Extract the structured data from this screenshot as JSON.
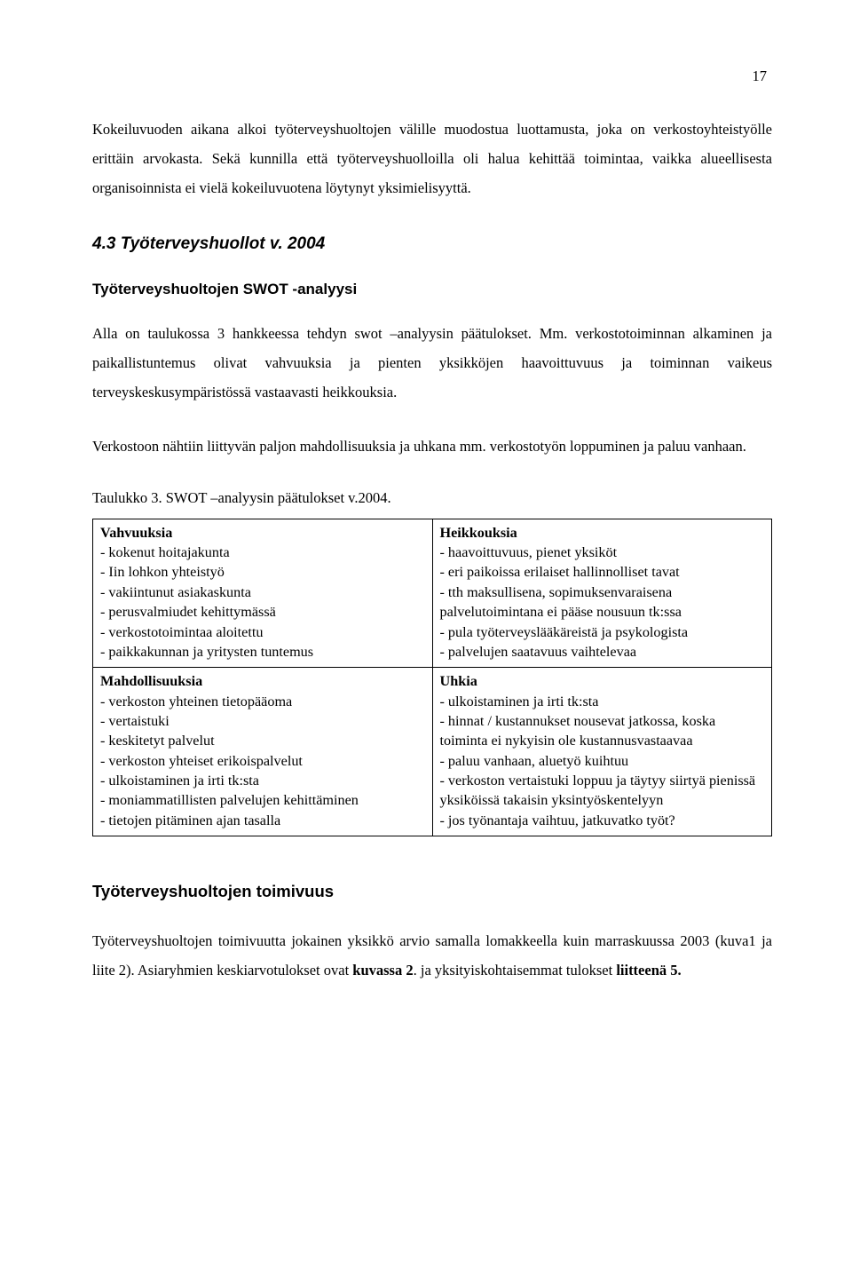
{
  "page_number": "17",
  "para1": "Kokeiluvuoden aikana alkoi työterveyshuoltojen välille muodostua luottamusta, joka on verkostoyhteistyölle erittäin arvokasta. Sekä kunnilla että työterveyshuolloilla oli halua kehittää toimintaa, vaikka alueellisesta organisoinnista ei vielä kokeiluvuotena löytynyt yksimielisyyttä.",
  "section_heading": "4.3 Työterveyshuollot v. 2004",
  "swot_heading": "Työterveyshuoltojen SWOT -analyysi",
  "para2": "Alla on taulukossa 3 hankkeessa tehdyn swot –analyysin päätulokset. Mm. verkostotoiminnan alkaminen ja paikallistuntemus olivat vahvuuksia ja pienten yksikköjen haavoittuvuus ja toiminnan vaikeus terveyskeskusympäristössä vastaavasti heikkouksia.",
  "para3": "Verkostoon nähtiin liittyvän paljon mahdollisuuksia ja uhkana mm. verkostotyön loppuminen ja paluu vanhaan.",
  "table_caption": "Taulukko 3. SWOT –analyysin päätulokset v.2004.",
  "swot": {
    "strengths": {
      "title": "Vahvuuksia",
      "items": [
        "- kokenut hoitajakunta",
        "- Iin lohkon yhteistyö",
        "- vakiintunut asiakaskunta",
        "- perusvalmiudet kehittymässä",
        "- verkostotoimintaa aloitettu",
        "- paikkakunnan ja yritysten tuntemus"
      ]
    },
    "weaknesses": {
      "title": "Heikkouksia",
      "items": [
        "- haavoittuvuus, pienet yksiköt",
        "- eri paikoissa erilaiset hallinnolliset tavat",
        "- tth maksullisena, sopimuksenvaraisena palvelutoimintana ei pääse nousuun tk:ssa",
        "- pula työterveyslääkäreistä ja psykologista",
        "- palvelujen saatavuus vaihtelevaa"
      ]
    },
    "opportunities": {
      "title": "Mahdollisuuksia",
      "items": [
        "- verkoston yhteinen tietopääoma",
        "- vertaistuki",
        "- keskitetyt palvelut",
        "- verkoston yhteiset erikoispalvelut",
        "- ulkoistaminen ja irti tk:sta",
        "- moniammatillisten palvelujen kehittäminen",
        "- tietojen pitäminen ajan tasalla"
      ]
    },
    "threats": {
      "title": "Uhkia",
      "items": [
        "- ulkoistaminen ja irti tk:sta",
        "- hinnat / kustannukset nousevat jatkossa, koska toiminta ei nykyisin ole kustannusvastaavaa",
        "- paluu vanhaan, aluetyö kuihtuu",
        "- verkoston vertaistuki loppuu ja täytyy siirtyä pienissä yksiköissä takaisin yksintyöskentelyyn",
        "- jos työnantaja vaihtuu, jatkuvatko työt?"
      ]
    }
  },
  "footer_heading": "Työterveyshuoltojen toimivuus",
  "para4_pre": "Työterveyshuoltojen toimivuutta jokainen yksikkö arvio samalla lomakkeella kuin marraskuussa 2003 (kuva1 ja liite 2). Asiaryhmien keskiarvotulokset ovat ",
  "para4_b1": "kuvassa 2",
  "para4_mid": ". ja yksityiskohtaisemmat tulokset ",
  "para4_b2": "liitteenä 5."
}
